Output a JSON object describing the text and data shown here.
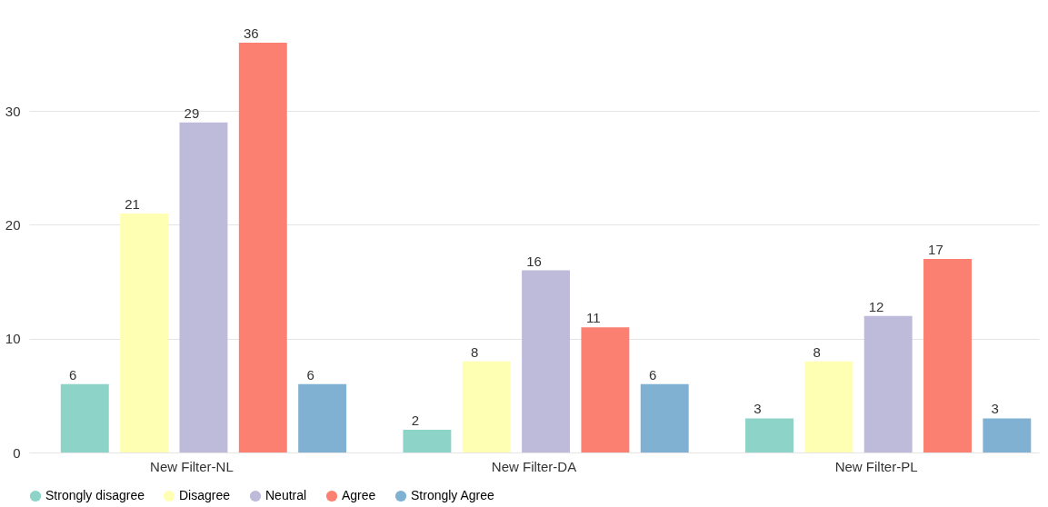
{
  "chart_data": {
    "type": "bar",
    "categories": [
      "New Filter-NL",
      "New Filter-DA",
      "New Filter-PL"
    ],
    "series": [
      {
        "name": "Strongly disagree",
        "color": "#8dd3c7",
        "values": [
          6,
          2,
          3
        ]
      },
      {
        "name": "Disagree",
        "color": "#ffffb3",
        "values": [
          21,
          8,
          8
        ]
      },
      {
        "name": "Neutral",
        "color": "#bebada",
        "values": [
          29,
          16,
          12
        ]
      },
      {
        "name": "Agree",
        "color": "#fb8072",
        "values": [
          36,
          11,
          17
        ]
      },
      {
        "name": "Strongly Agree",
        "color": "#80b1d3",
        "values": [
          6,
          6,
          3
        ]
      }
    ],
    "ylim": [
      0,
      36
    ],
    "yticks": [
      0,
      10,
      20,
      30
    ],
    "grid": "y",
    "legend": "bottom",
    "data_labels": true
  }
}
